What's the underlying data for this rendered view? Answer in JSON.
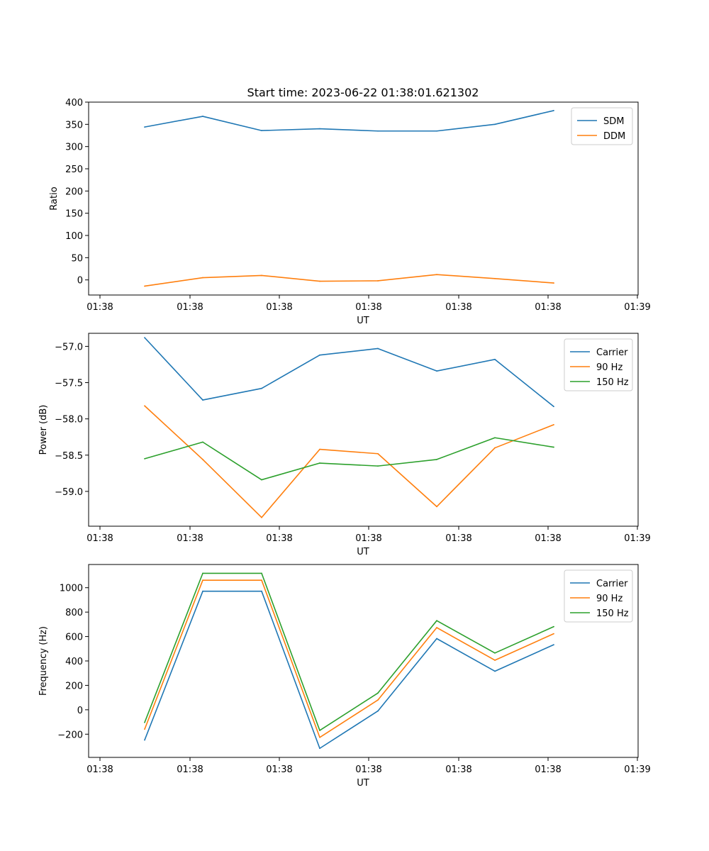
{
  "title": "Start time: 2023-06-22 01:38:01.621302",
  "chart_data": [
    {
      "type": "line",
      "xlabel": "UT",
      "ylabel": "Ratio",
      "x_tick_labels": [
        "01:38",
        "01:38",
        "01:38",
        "01:38",
        "01:38",
        "01:38",
        "01:39"
      ],
      "ylim": [
        -34,
        400
      ],
      "y_ticks": [
        0,
        50,
        100,
        150,
        200,
        250,
        300,
        350,
        400
      ],
      "y_tick_labels": [
        "0",
        "50",
        "100",
        "150",
        "200",
        "250",
        "300",
        "350",
        "400"
      ],
      "legend_position": "upper right",
      "series": [
        {
          "name": "SDM",
          "color": "#1f77b4",
          "values": [
            344,
            368,
            336,
            340,
            335,
            335,
            350,
            381
          ]
        },
        {
          "name": "DDM",
          "color": "#ff7f0e",
          "values": [
            -14,
            5,
            10,
            -3,
            -2,
            12,
            3,
            -7
          ]
        }
      ]
    },
    {
      "type": "line",
      "xlabel": "UT",
      "ylabel": "Power (dB)",
      "x_tick_labels": [
        "01:38",
        "01:38",
        "01:38",
        "01:38",
        "01:38",
        "01:38",
        "01:39"
      ],
      "ylim": [
        -59.48,
        -56.82
      ],
      "y_ticks": [
        -59.0,
        -58.5,
        -58.0,
        -57.5,
        -57.0
      ],
      "y_tick_labels": [
        "−59.0",
        "−58.5",
        "−58.0",
        "−57.5",
        "−57.0"
      ],
      "legend_position": "upper right",
      "series": [
        {
          "name": "Carrier",
          "color": "#1f77b4",
          "values": [
            -56.88,
            -57.74,
            -57.58,
            -57.12,
            -57.03,
            -57.34,
            -57.18,
            -57.83
          ]
        },
        {
          "name": "90 Hz",
          "color": "#ff7f0e",
          "values": [
            -57.82,
            -58.56,
            -59.36,
            -58.42,
            -58.48,
            -59.21,
            -58.4,
            -58.08
          ]
        },
        {
          "name": "150 Hz",
          "color": "#2ca02c",
          "values": [
            -58.55,
            -58.32,
            -58.84,
            -58.61,
            -58.65,
            -58.56,
            -58.26,
            -58.39
          ]
        }
      ]
    },
    {
      "type": "line",
      "xlabel": "UT",
      "ylabel": "Frequency (Hz)",
      "x_tick_labels": [
        "01:38",
        "01:38",
        "01:38",
        "01:38",
        "01:38",
        "01:38",
        "01:39"
      ],
      "ylim": [
        -390,
        1190
      ],
      "y_ticks": [
        -200,
        0,
        200,
        400,
        600,
        800,
        1000
      ],
      "y_tick_labels": [
        "−200",
        "0",
        "200",
        "400",
        "600",
        "800",
        "1000"
      ],
      "legend_position": "upper right",
      "series": [
        {
          "name": "Carrier",
          "color": "#1f77b4",
          "values": [
            -248,
            971,
            971,
            -316,
            -10,
            583,
            316,
            533
          ]
        },
        {
          "name": "90 Hz",
          "color": "#ff7f0e",
          "values": [
            -159,
            1061,
            1061,
            -226,
            80,
            673,
            406,
            623
          ]
        },
        {
          "name": "150 Hz",
          "color": "#2ca02c",
          "values": [
            -104,
            1118,
            1118,
            -169,
            137,
            730,
            465,
            681
          ]
        }
      ]
    }
  ]
}
